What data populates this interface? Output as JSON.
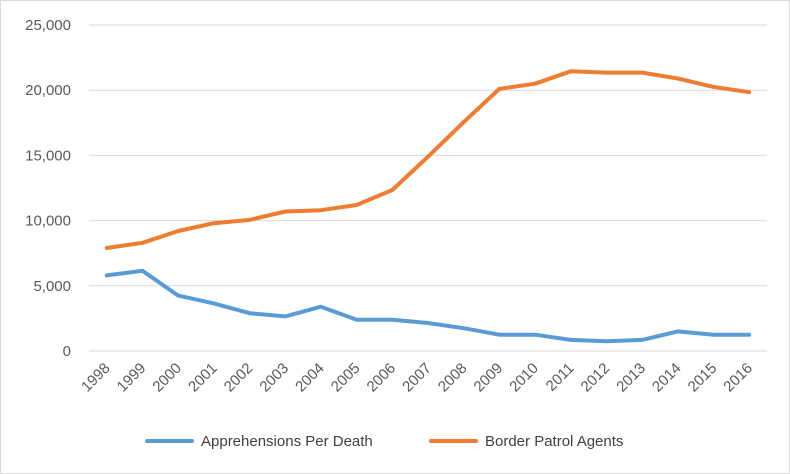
{
  "chart_data": {
    "type": "line",
    "title": "",
    "xlabel": "",
    "ylabel": "",
    "x": [
      "1998",
      "1999",
      "2000",
      "2001",
      "2002",
      "2003",
      "2004",
      "2005",
      "2006",
      "2007",
      "2008",
      "2009",
      "2010",
      "2011",
      "2012",
      "2013",
      "2014",
      "2015",
      "2016"
    ],
    "ylim": [
      0,
      25000
    ],
    "yticks": [
      0,
      5000,
      10000,
      15000,
      20000,
      25000
    ],
    "ytick_labels": [
      "0",
      "5,000",
      "10,000",
      "15,000",
      "20,000",
      "25,000"
    ],
    "grid": true,
    "legend_position": "bottom",
    "series": [
      {
        "name": "Apprehensions Per Death",
        "color": "#5b9bd5",
        "values": [
          5800,
          6150,
          4250,
          3650,
          2900,
          2650,
          3400,
          2400,
          2400,
          2150,
          1750,
          1250,
          1250,
          850,
          750,
          850,
          1500,
          1250,
          1250
        ]
      },
      {
        "name": "Border Patrol Agents",
        "color": "#ed7d31",
        "values": [
          7900,
          8300,
          9200,
          9800,
          10050,
          10700,
          10800,
          11200,
          12350,
          14900,
          17550,
          20100,
          20500,
          21450,
          21350,
          21350,
          20900,
          20250,
          19850
        ]
      }
    ]
  }
}
